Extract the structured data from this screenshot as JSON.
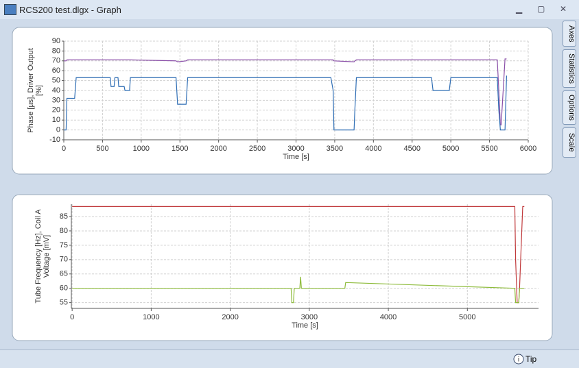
{
  "window": {
    "title": "RCS200 test.dlgx - Graph",
    "tabs": [
      "Axes",
      "Statistics",
      "Options",
      "Scale"
    ],
    "status": "Tip"
  },
  "chart_data": [
    {
      "type": "line",
      "xlabel": "Time [s]",
      "ylabel": [
        "Phase [µs], Driver Output",
        "[%]"
      ],
      "xlim": [
        0,
        6000
      ],
      "ylim": [
        -10,
        90
      ],
      "xticks": [
        0,
        500,
        1000,
        1500,
        2000,
        2500,
        3000,
        3500,
        4000,
        4500,
        5000,
        5500,
        6000
      ],
      "yticks": [
        -10,
        0,
        10,
        20,
        30,
        40,
        50,
        60,
        70,
        80,
        90
      ],
      "grid": true,
      "x": [
        0,
        30,
        40,
        140,
        160,
        600,
        610,
        650,
        660,
        700,
        710,
        780,
        790,
        850,
        860,
        1450,
        1470,
        1580,
        1600,
        3450,
        3480,
        3490,
        3750,
        3760,
        3780,
        4750,
        4770,
        4980,
        5000,
        5600,
        5620,
        5640,
        5650,
        5700,
        5720
      ],
      "series": [
        {
          "color": "#8a4fa8",
          "values": [
            70,
            70,
            71,
            71,
            71,
            71,
            71,
            71,
            71,
            71,
            71,
            71,
            71,
            71,
            71,
            70,
            69,
            70,
            71,
            71,
            71,
            70,
            69,
            70,
            71,
            71,
            71,
            71,
            71,
            71,
            40,
            5,
            5,
            72,
            72
          ]
        },
        {
          "color": "#2e6db4",
          "values": [
            0,
            0,
            32,
            32,
            53,
            53,
            44,
            44,
            53,
            53,
            44,
            44,
            40,
            40,
            53,
            53,
            26,
            26,
            53,
            53,
            40,
            0,
            0,
            20,
            53,
            53,
            40,
            40,
            53,
            53,
            20,
            0,
            0,
            0,
            55
          ]
        }
      ]
    },
    {
      "type": "line",
      "xlabel": "Time [s]",
      "ylabel": [
        "Tube Frequency [Hz], Coil A",
        "Voltage [mV]"
      ],
      "xlim": [
        -10,
        5900
      ],
      "ylim": [
        53,
        89.3
      ],
      "xticks": [
        0,
        1000,
        2000,
        3000,
        4000,
        5000
      ],
      "yticks": [
        55,
        60,
        65,
        70,
        75,
        80,
        85
      ],
      "grid": true,
      "x": [
        0,
        2770,
        2780,
        2800,
        2810,
        2880,
        2890,
        2900,
        3450,
        3460,
        5600,
        5610,
        5630,
        5650,
        5660,
        5700,
        5720
      ],
      "series": [
        {
          "color": "#c0393b",
          "values": [
            88.5,
            88.5,
            88.5,
            88.5,
            88.5,
            88.5,
            88.5,
            88.5,
            88.5,
            88.5,
            88.5,
            70,
            55,
            55,
            60,
            88.5,
            88.5
          ]
        },
        {
          "color": "#8dbb3a",
          "values": [
            60,
            60,
            55,
            55,
            60,
            60,
            64,
            60,
            60,
            62,
            60,
            55,
            55,
            55,
            60,
            60,
            60
          ]
        }
      ]
    }
  ]
}
